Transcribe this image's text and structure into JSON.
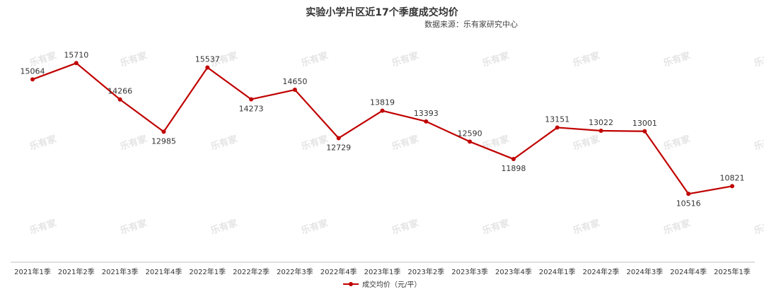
{
  "title": "实验小学片区近17个季度成交均价",
  "subtitle": "数据来源：乐有家研究中心",
  "watermark_text": "乐有家",
  "colors": {
    "line": "#c00000",
    "axis": "#bfbfbf",
    "label": "#333333",
    "watermark": "#e4e4e4"
  },
  "chart_data": {
    "type": "line",
    "categories": [
      "2021年1季",
      "2021年2季",
      "2021年3季",
      "2021年4季",
      "2022年1季",
      "2022年2季",
      "2022年3季",
      "2022年4季",
      "2023年1季",
      "2023年2季",
      "2023年3季",
      "2023年4季",
      "2024年1季",
      "2024年2季",
      "2024年3季",
      "2024年4季",
      "2025年1季"
    ],
    "series": [
      {
        "name": "成交均价（元/平）",
        "values": [
          15064,
          15710,
          14266,
          12985,
          15537,
          14273,
          14650,
          12729,
          13819,
          13393,
          12590,
          11898,
          13151,
          13022,
          13001,
          10516,
          10821
        ]
      }
    ],
    "label_positions": [
      "above",
      "above",
      "above",
      "below",
      "above",
      "below",
      "above",
      "below",
      "above",
      "above",
      "above",
      "below",
      "above",
      "above",
      "above",
      "below",
      "above"
    ],
    "ylim": [
      7800,
      17600
    ],
    "grid": false,
    "legend": "bottom-center"
  }
}
